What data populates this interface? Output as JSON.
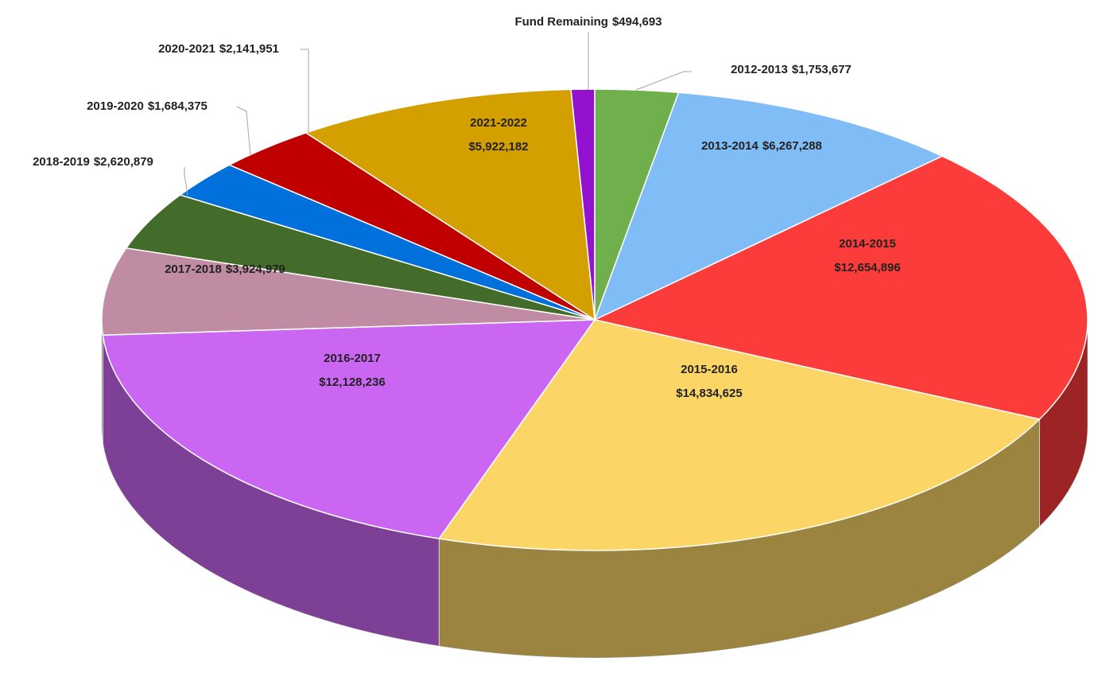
{
  "chart_data": {
    "type": "pie",
    "categories": [
      "2012-2013",
      "2013-2014",
      "2014-2015",
      "2015-2016",
      "2016-2017",
      "2017-2018",
      "2018-2019",
      "2019-2020",
      "2020-2021",
      "2021-2022",
      "Fund Remaining"
    ],
    "values": [
      1753677,
      6267288,
      12654896,
      14834625,
      12128236,
      3924979,
      2620879,
      1684375,
      2141951,
      5922182,
      494693
    ],
    "value_labels": [
      "$1,753,677",
      "$6,267,288",
      "$12,654,896",
      "$14,834,625",
      "$12,128,236",
      "$3,924,979",
      "$2,620,879",
      "$1,684,375",
      "$2,141,951",
      "$5,922,182",
      "$494,693"
    ],
    "colors": [
      "#70b04c",
      "#80bcf5",
      "#fc3b3b",
      "#fbd566",
      "#cb66f2",
      "#c08ca4",
      "#436c2b",
      "#0070dc",
      "#c00000",
      "#d3a000",
      "#9312d0"
    ]
  }
}
